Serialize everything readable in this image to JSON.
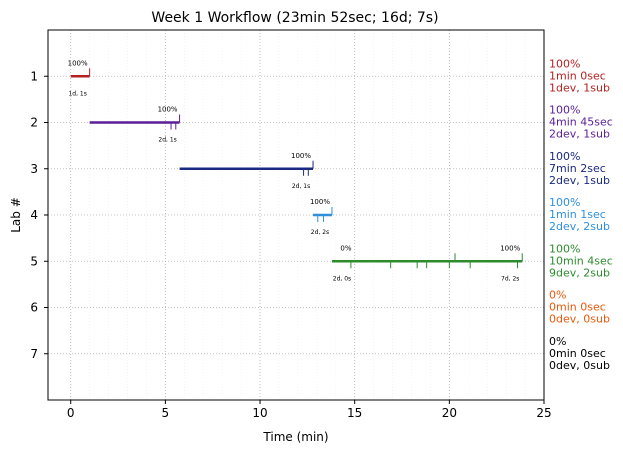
{
  "chart_data": {
    "type": "gantt",
    "title": "Week 1 Workflow (23min 52sec; 16d; 7s)",
    "xlabel": "Time (min)",
    "ylabel": "Lab #",
    "xlim": [
      -1.2,
      25
    ],
    "ylim": [
      8,
      0
    ],
    "x_ticks": [
      0,
      5,
      10,
      15,
      20,
      25
    ],
    "y_ticks": [
      1,
      2,
      3,
      4,
      5,
      6,
      7
    ],
    "grid": true,
    "labs": [
      {
        "lab": 1,
        "start": 0.0,
        "end": 1.0,
        "color": "#b22222",
        "start_pct": "",
        "end_pct": "100%",
        "sub_label": "1d, 1s",
        "ticks": [
          1.0
        ],
        "side": [
          "100%",
          "1min 0sec",
          "1dev, 1sub"
        ]
      },
      {
        "lab": 2,
        "start": 1.0,
        "end": 5.75,
        "color": "#5a1e96",
        "start_pct": "",
        "end_pct": "100%",
        "sub_label": "2d, 1s",
        "ticks": [
          5.3,
          5.55,
          5.75
        ],
        "side": [
          "100%",
          "4min 45sec",
          "2dev, 1sub"
        ]
      },
      {
        "lab": 3,
        "start": 5.75,
        "end": 12.8,
        "color": "#1a2a80",
        "start_pct": "",
        "end_pct": "100%",
        "sub_label": "2d, 1s",
        "ticks": [
          12.3,
          12.55,
          12.8
        ],
        "side": [
          "100%",
          "7min 2sec",
          "2dev, 1sub"
        ]
      },
      {
        "lab": 4,
        "start": 12.8,
        "end": 13.8,
        "color": "#2f8fdc",
        "start_pct": "",
        "end_pct": "100%",
        "sub_label": "2d, 2s",
        "ticks": [
          13.05,
          13.35,
          13.8
        ],
        "side": [
          "100%",
          "1min 1sec",
          "2dev, 2sub"
        ]
      },
      {
        "lab": 5,
        "start": 13.8,
        "end": 23.85,
        "color": "#2e8b2e",
        "start_pct": "0%",
        "end_pct": "100%",
        "sub_label_start": "2d, 0s",
        "sub_label": "7d, 2s",
        "ticks": [
          14.8,
          16.9,
          18.3,
          18.8,
          20.0,
          20.3,
          21.1,
          23.6,
          23.85
        ],
        "side": [
          "100%",
          "10min 4sec",
          "9dev, 2sub"
        ]
      },
      {
        "lab": 6,
        "color": "#e8590c",
        "side": [
          "0%",
          "0min 0sec",
          "0dev, 0sub"
        ]
      },
      {
        "lab": 7,
        "color": "#000000",
        "side": [
          "0%",
          "0min 0sec",
          "0dev, 0sub"
        ]
      }
    ]
  }
}
